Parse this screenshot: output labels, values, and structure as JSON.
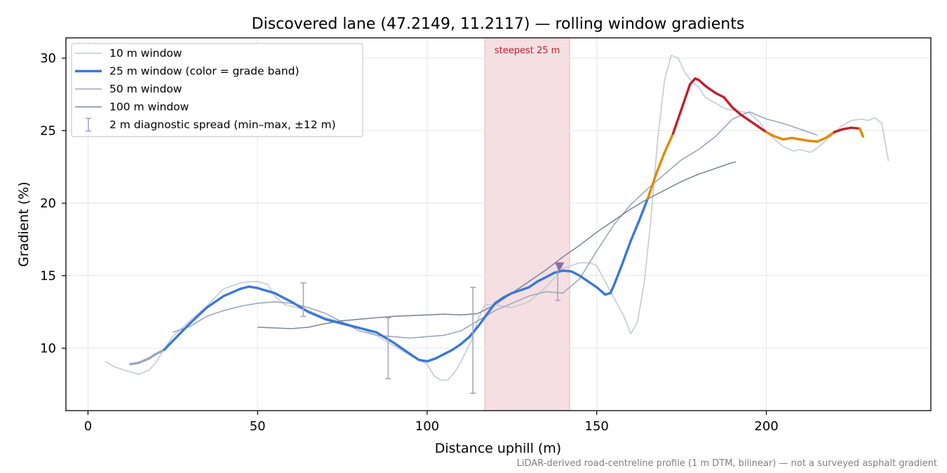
{
  "chart_data": {
    "type": "line",
    "title": "Discovered lane (47.2149, 11.2117) — rolling window gradients",
    "xlabel": "Distance uphill (m)",
    "ylabel": "Gradient (%)",
    "xlim": [
      -6.5,
      248.5
    ],
    "ylim": [
      5.7,
      31.4
    ],
    "xticks": [
      0,
      50,
      100,
      150,
      200
    ],
    "yticks": [
      10,
      15,
      20,
      25,
      30
    ],
    "grid": true,
    "legend_position": "top-left",
    "footnote": "LiDAR-derived road-centreline profile (1 m DTM, bilinear) — not a surveyed asphalt gradient",
    "highlight": {
      "x0": 117,
      "x1": 142,
      "label": "steepest 25 m",
      "color": "#f5dfe2"
    },
    "marker": {
      "x": 139,
      "y": 15.65,
      "color": "#8a6fa0"
    },
    "grade_colors": {
      "low": "#3a78d6",
      "mid": "#e08a00",
      "high": "#c0202c"
    },
    "series": [
      {
        "name": "10 m window",
        "color": "#c4c9d4",
        "x": [
          5,
          8,
          12,
          15,
          18,
          20,
          22,
          25,
          30,
          35,
          40,
          45,
          48,
          50,
          53,
          55,
          58,
          60,
          65,
          70,
          75,
          80,
          85,
          90,
          95,
          100,
          102,
          104,
          106,
          108,
          110,
          113,
          115,
          117,
          120,
          125,
          130,
          135,
          140,
          145,
          148,
          150,
          152,
          155,
          158,
          160,
          162,
          164,
          166,
          168,
          170,
          172,
          174,
          176,
          178,
          180,
          182,
          185,
          188,
          190,
          193,
          195,
          198,
          200,
          203,
          205,
          208,
          210,
          213,
          215,
          218,
          220,
          222,
          225,
          228,
          230,
          232,
          234,
          236
        ],
        "y": [
          9.1,
          8.7,
          8.4,
          8.2,
          8.5,
          9.0,
          9.8,
          10.8,
          11.9,
          12.9,
          14.1,
          14.5,
          14.6,
          14.6,
          14.4,
          13.6,
          13.0,
          12.9,
          12.6,
          12.1,
          11.8,
          11.4,
          10.9,
          10.2,
          9.5,
          8.9,
          8.1,
          7.8,
          7.8,
          8.3,
          9.1,
          10.5,
          12.0,
          13.0,
          13.0,
          12.8,
          13.2,
          14.2,
          15.5,
          15.9,
          15.9,
          15.7,
          14.8,
          13.5,
          12.2,
          11.0,
          11.8,
          14.5,
          19.0,
          24.5,
          28.5,
          30.2,
          30.0,
          29.0,
          28.4,
          28.0,
          27.3,
          26.9,
          26.5,
          26.4,
          26.3,
          26.2,
          25.6,
          24.9,
          24.3,
          23.9,
          23.6,
          23.7,
          23.5,
          23.8,
          24.4,
          24.8,
          25.3,
          25.7,
          25.8,
          25.7,
          25.9,
          25.5,
          22.9
        ]
      },
      {
        "name": "25 m window (color = grade band)",
        "color": "#3a78d6",
        "x": [
          12.5,
          15,
          18,
          20,
          22.5,
          25,
          30,
          35,
          40,
          45,
          47.5,
          50,
          55,
          60,
          65,
          70,
          75,
          80,
          85,
          90,
          95,
          97.5,
          100,
          102.5,
          105,
          107.5,
          110,
          112.5,
          115,
          117.5,
          120,
          122.5,
          125,
          127.5,
          130,
          132.5,
          135,
          137.5,
          140,
          142.5,
          145,
          147.5,
          150,
          152.5,
          154,
          155,
          157.5,
          160,
          162.5,
          165,
          167.5,
          170,
          172.5,
          175,
          177.5,
          179,
          180,
          182.5,
          185,
          187.5,
          190,
          192.5,
          195,
          197.5,
          200,
          202.5,
          205,
          207.5,
          210,
          212.5,
          215,
          217.5,
          220,
          222.5,
          225,
          227.5,
          228.5
        ],
        "y": [
          8.9,
          9.0,
          9.3,
          9.6,
          9.9,
          10.5,
          11.7,
          12.8,
          13.6,
          14.1,
          14.25,
          14.15,
          13.8,
          13.2,
          12.5,
          12.0,
          11.7,
          11.4,
          11.1,
          10.4,
          9.6,
          9.2,
          9.1,
          9.3,
          9.6,
          9.9,
          10.3,
          10.8,
          11.5,
          12.3,
          13.1,
          13.5,
          13.8,
          14.0,
          14.2,
          14.6,
          14.9,
          15.2,
          15.35,
          15.3,
          15.0,
          14.6,
          14.2,
          13.7,
          13.8,
          14.3,
          15.8,
          17.4,
          18.8,
          20.3,
          22.0,
          23.5,
          24.8,
          26.5,
          28.2,
          28.6,
          28.5,
          28.0,
          27.6,
          27.3,
          26.6,
          26.1,
          25.7,
          25.3,
          24.9,
          24.6,
          24.4,
          24.5,
          24.4,
          24.3,
          24.25,
          24.5,
          24.9,
          25.1,
          25.2,
          25.15,
          24.6
        ]
      },
      {
        "name": "50 m window",
        "color": "#9ba7bb",
        "x": [
          25,
          30,
          35,
          40,
          45,
          50,
          55,
          60,
          65,
          70,
          75,
          80,
          85,
          90,
          95,
          100,
          105,
          110,
          115,
          120,
          125,
          130,
          135,
          140,
          145,
          150,
          155,
          160,
          165,
          170,
          175,
          180,
          185,
          190,
          195,
          200,
          205,
          210,
          215
        ],
        "y": [
          11.1,
          11.5,
          12.2,
          12.6,
          12.9,
          13.1,
          13.2,
          13.1,
          12.8,
          12.4,
          11.8,
          11.2,
          10.9,
          10.8,
          10.7,
          10.8,
          10.9,
          11.2,
          11.9,
          12.6,
          13.1,
          13.6,
          13.9,
          13.8,
          14.8,
          16.7,
          18.5,
          19.9,
          21.0,
          22.0,
          23.0,
          23.7,
          24.6,
          25.8,
          26.3,
          25.8,
          25.5,
          25.1,
          24.7
        ]
      },
      {
        "name": "100 m window",
        "color": "#7f8898",
        "x": [
          50,
          55,
          60,
          65,
          70,
          75,
          80,
          85,
          90,
          95,
          100,
          105,
          110,
          115,
          120,
          125,
          130,
          135,
          140,
          145,
          150,
          155,
          160,
          165,
          170,
          175,
          180,
          185,
          190,
          191
        ],
        "y": [
          11.45,
          11.4,
          11.35,
          11.45,
          11.7,
          11.9,
          12.0,
          12.1,
          12.2,
          12.25,
          12.3,
          12.35,
          12.3,
          12.4,
          13.0,
          13.8,
          14.6,
          15.4,
          16.3,
          17.1,
          18.0,
          18.8,
          19.6,
          20.3,
          20.9,
          21.5,
          22.0,
          22.4,
          22.8,
          22.85
        ]
      }
    ],
    "errorbars": {
      "name": "2 m diagnostic spread (min–max, ±12 m)",
      "color": "#a7a3c4",
      "points": [
        {
          "x": 63.5,
          "ymin": 12.2,
          "ymax": 14.5
        },
        {
          "x": 88.5,
          "ymin": 7.9,
          "ymax": 12.1
        },
        {
          "x": 113.5,
          "ymin": 6.9,
          "ymax": 14.2
        },
        {
          "x": 138.5,
          "ymin": 13.3,
          "ymax": 15.9
        }
      ]
    }
  }
}
